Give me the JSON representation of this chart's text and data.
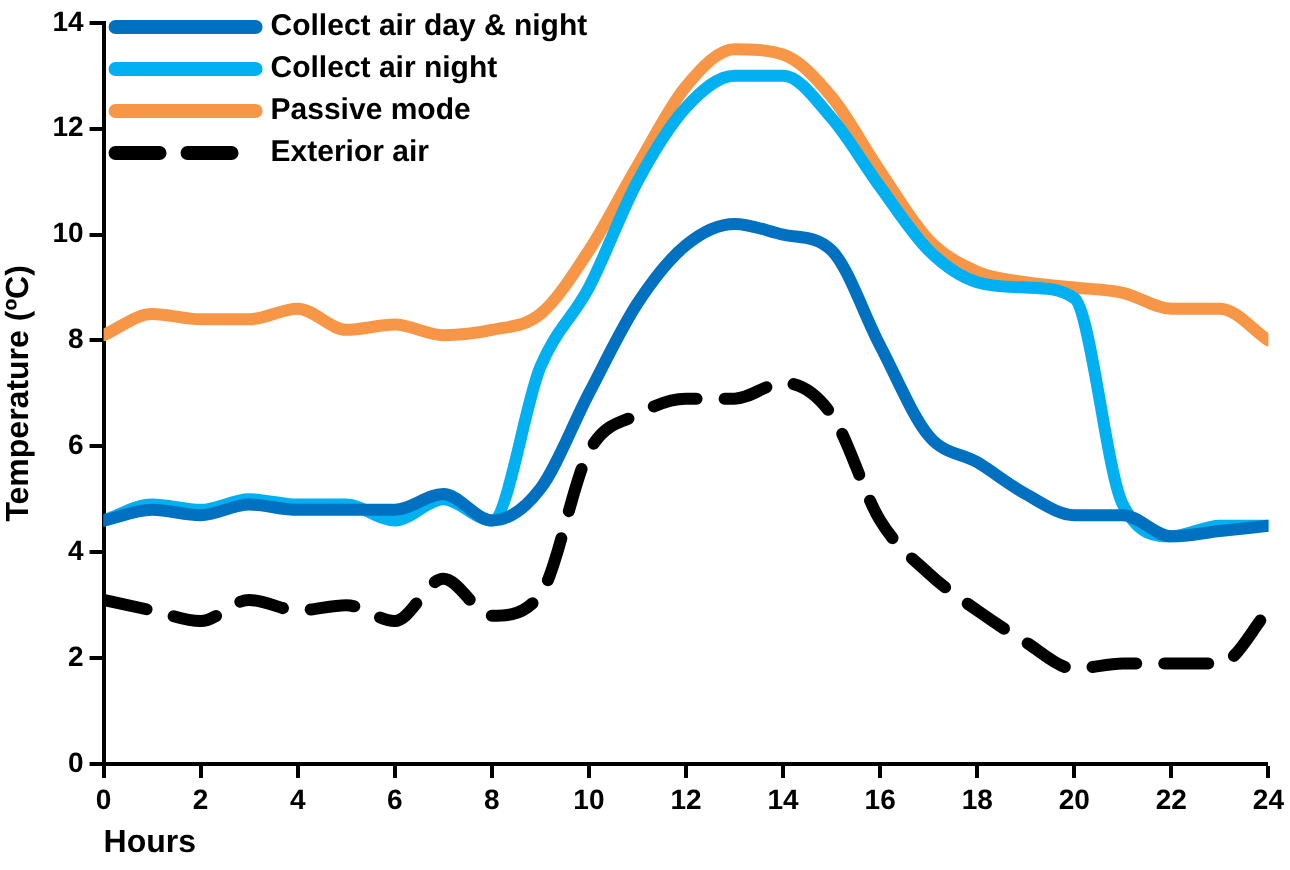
{
  "chart_data": {
    "type": "line",
    "xlabel": "Hours",
    "ylabel": "Temperature (ºC)",
    "x": [
      0,
      1,
      2,
      3,
      4,
      5,
      6,
      7,
      8,
      9,
      10,
      11,
      12,
      13,
      14,
      15,
      16,
      17,
      18,
      19,
      20,
      21,
      22,
      23,
      24
    ],
    "xlim": [
      0,
      24
    ],
    "xticks": [
      0,
      2,
      4,
      6,
      8,
      10,
      12,
      14,
      16,
      18,
      20,
      22,
      24
    ],
    "ylim": [
      0,
      14
    ],
    "yticks": [
      0,
      2,
      4,
      6,
      8,
      10,
      12,
      14
    ],
    "grid": false,
    "legend": "top left",
    "marker": "none",
    "series": [
      {
        "name": "Collect air day & night",
        "color": "#0070c0",
        "line_style": "solid",
        "values": [
          4.6,
          4.8,
          4.7,
          4.9,
          4.8,
          4.8,
          4.8,
          5.1,
          4.6,
          5.2,
          7.0,
          8.7,
          9.8,
          10.2,
          10.0,
          9.7,
          7.9,
          6.2,
          5.7,
          5.1,
          4.7,
          4.7,
          4.3,
          4.4,
          4.5
        ]
      },
      {
        "name": "Collect air night",
        "color": "#00b0f0",
        "line_style": "solid",
        "values": [
          4.6,
          4.9,
          4.8,
          5.0,
          4.9,
          4.9,
          4.6,
          5.0,
          4.6,
          7.5,
          9.0,
          11.0,
          12.4,
          13.0,
          13.0,
          12.2,
          10.9,
          9.7,
          9.1,
          9.0,
          8.8,
          4.9,
          4.3,
          4.5,
          4.5
        ]
      },
      {
        "name": "Passive mode",
        "color": "#f79646",
        "line_style": "solid",
        "values": [
          8.1,
          8.5,
          8.4,
          8.4,
          8.6,
          8.2,
          8.3,
          8.1,
          8.2,
          8.5,
          9.7,
          11.3,
          12.8,
          13.5,
          13.4,
          12.6,
          11.2,
          9.9,
          9.3,
          9.1,
          9.0,
          8.9,
          8.6,
          8.6,
          8.0
        ]
      },
      {
        "name": "Exterior air",
        "color": "#000000",
        "line_style": "dashed",
        "values": [
          3.1,
          2.9,
          2.7,
          3.1,
          2.9,
          3.0,
          2.7,
          3.5,
          2.8,
          3.2,
          5.9,
          6.6,
          6.9,
          6.9,
          7.2,
          6.6,
          4.6,
          3.6,
          2.9,
          2.3,
          1.8,
          1.9,
          1.9,
          1.9,
          2.9
        ]
      }
    ]
  }
}
